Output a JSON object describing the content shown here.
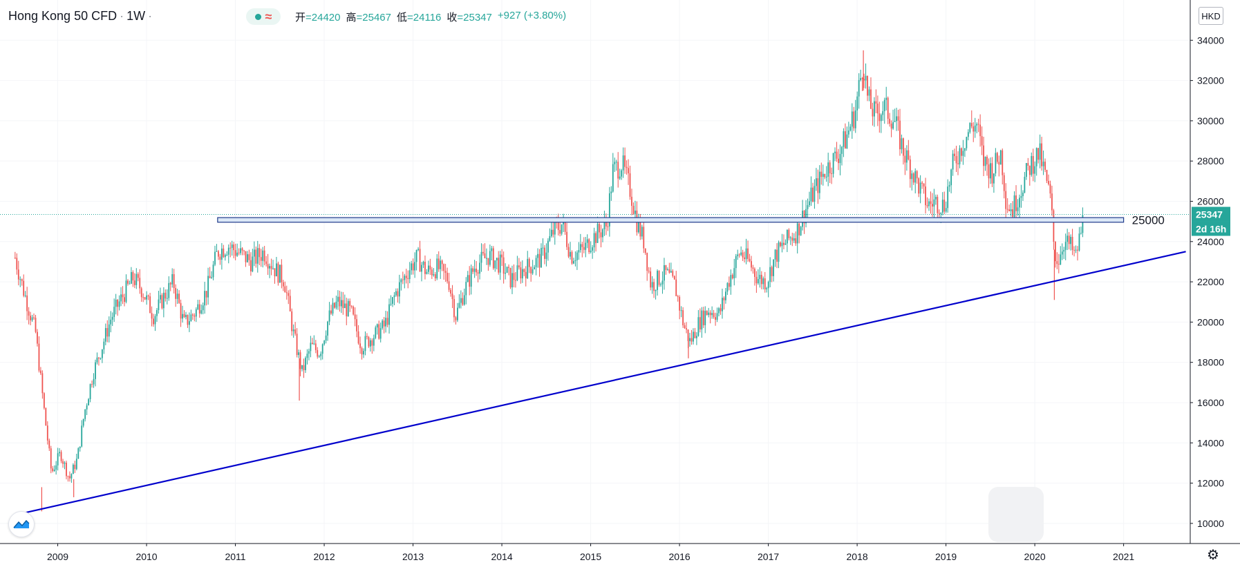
{
  "header": {
    "title": "Hong Kong 50 CFD",
    "separator": "·",
    "interval": "1W",
    "status_icon": "market-open-dot-icon",
    "wave_icon": "approx-wave-icon",
    "ohlc": [
      {
        "label": "开",
        "value": "=24420"
      },
      {
        "label": "高",
        "value": "=25467"
      },
      {
        "label": "低",
        "value": "=24116"
      },
      {
        "label": "收",
        "value": "=25347"
      }
    ],
    "change": "+927 (+3.80%)"
  },
  "currency_button": "HKD",
  "price_tag": {
    "value": "25347",
    "countdown": "2d 16h",
    "color": "#26a69a"
  },
  "level_label": "25000",
  "colors": {
    "up": "#26a69a",
    "down": "#ef5350",
    "trendline": "#0000cc",
    "band": "#1e3a8a",
    "band_fill": "#dbe7f7"
  },
  "icons": {
    "logo": "tradingview-logo-icon",
    "settings": "gear-icon"
  },
  "chart_data": {
    "type": "candlestick",
    "interval": "1W",
    "currency": "HKD",
    "xlim": [
      2008.35,
      2021.75
    ],
    "ylim": [
      9000,
      36000
    ],
    "y_ticks": [
      10000,
      12000,
      14000,
      16000,
      18000,
      20000,
      22000,
      24000,
      26000,
      28000,
      30000,
      32000,
      34000
    ],
    "x_ticks": [
      {
        "label": "2009",
        "x": 2009.0
      },
      {
        "label": "2010",
        "x": 2010.0
      },
      {
        "label": "2011",
        "x": 2011.0
      },
      {
        "label": "2012",
        "x": 2012.0
      },
      {
        "label": "2013",
        "x": 2013.0
      },
      {
        "label": "2014",
        "x": 2014.0
      },
      {
        "label": "2015",
        "x": 2015.0
      },
      {
        "label": "2016",
        "x": 2016.0
      },
      {
        "label": "2017",
        "x": 2017.0
      },
      {
        "label": "2018",
        "x": 2018.0
      },
      {
        "label": "2019",
        "x": 2019.0
      },
      {
        "label": "2020",
        "x": 2020.0
      },
      {
        "label": "2021",
        "x": 2021.0
      }
    ],
    "price_path_anchors": [
      [
        2008.52,
        23200
      ],
      [
        2008.62,
        21500
      ],
      [
        2008.75,
        19500
      ],
      [
        2008.85,
        15500
      ],
      [
        2008.93,
        12500
      ],
      [
        2009.03,
        13500
      ],
      [
        2009.13,
        12200
      ],
      [
        2009.22,
        13200
      ],
      [
        2009.3,
        15500
      ],
      [
        2009.4,
        17500
      ],
      [
        2009.5,
        18800
      ],
      [
        2009.6,
        20200
      ],
      [
        2009.72,
        21200
      ],
      [
        2009.85,
        22200
      ],
      [
        2009.95,
        21600
      ],
      [
        2010.08,
        20300
      ],
      [
        2010.2,
        21300
      ],
      [
        2010.3,
        22000
      ],
      [
        2010.42,
        19900
      ],
      [
        2010.55,
        20500
      ],
      [
        2010.68,
        21600
      ],
      [
        2010.8,
        23500
      ],
      [
        2010.92,
        23800
      ],
      [
        2011.05,
        23400
      ],
      [
        2011.18,
        23000
      ],
      [
        2011.32,
        23500
      ],
      [
        2011.45,
        22600
      ],
      [
        2011.55,
        22100
      ],
      [
        2011.65,
        19500
      ],
      [
        2011.75,
        17500
      ],
      [
        2011.85,
        18800
      ],
      [
        2011.95,
        18500
      ],
      [
        2012.05,
        20200
      ],
      [
        2012.15,
        21000
      ],
      [
        2012.3,
        20500
      ],
      [
        2012.42,
        18800
      ],
      [
        2012.55,
        19300
      ],
      [
        2012.68,
        19800
      ],
      [
        2012.8,
        21400
      ],
      [
        2012.95,
        22600
      ],
      [
        2013.05,
        23200
      ],
      [
        2013.15,
        22500
      ],
      [
        2013.28,
        22700
      ],
      [
        2013.4,
        22100
      ],
      [
        2013.48,
        20300
      ],
      [
        2013.58,
        21600
      ],
      [
        2013.7,
        22800
      ],
      [
        2013.85,
        23300
      ],
      [
        2014.0,
        22800
      ],
      [
        2014.1,
        22100
      ],
      [
        2014.2,
        22500
      ],
      [
        2014.32,
        22800
      ],
      [
        2014.45,
        23200
      ],
      [
        2014.58,
        24500
      ],
      [
        2014.68,
        24900
      ],
      [
        2014.78,
        23300
      ],
      [
        2014.92,
        23600
      ],
      [
        2015.05,
        24300
      ],
      [
        2015.18,
        24800
      ],
      [
        2015.25,
        27500
      ],
      [
        2015.35,
        27900
      ],
      [
        2015.45,
        26500
      ],
      [
        2015.52,
        25000
      ],
      [
        2015.6,
        24000
      ],
      [
        2015.68,
        21800
      ],
      [
        2015.78,
        22200
      ],
      [
        2015.85,
        22400
      ],
      [
        2015.95,
        21800
      ],
      [
        2016.05,
        19800
      ],
      [
        2016.12,
        19000
      ],
      [
        2016.22,
        20000
      ],
      [
        2016.32,
        20600
      ],
      [
        2016.45,
        20400
      ],
      [
        2016.55,
        22000
      ],
      [
        2016.68,
        23500
      ],
      [
        2016.78,
        23000
      ],
      [
        2016.88,
        22200
      ],
      [
        2016.98,
        22000
      ],
      [
        2017.08,
        23300
      ],
      [
        2017.2,
        24000
      ],
      [
        2017.32,
        24500
      ],
      [
        2017.42,
        25600
      ],
      [
        2017.55,
        26800
      ],
      [
        2017.65,
        27600
      ],
      [
        2017.78,
        28300
      ],
      [
        2017.88,
        29200
      ],
      [
        2017.98,
        30500
      ],
      [
        2018.07,
        33000
      ],
      [
        2018.12,
        31000
      ],
      [
        2018.2,
        30300
      ],
      [
        2018.3,
        30700
      ],
      [
        2018.42,
        30000
      ],
      [
        2018.52,
        28500
      ],
      [
        2018.62,
        27500
      ],
      [
        2018.72,
        26500
      ],
      [
        2018.8,
        25800
      ],
      [
        2018.88,
        26000
      ],
      [
        2018.98,
        25800
      ],
      [
        2019.08,
        27800
      ],
      [
        2019.18,
        28800
      ],
      [
        2019.28,
        29700
      ],
      [
        2019.35,
        29800
      ],
      [
        2019.42,
        28000
      ],
      [
        2019.52,
        27500
      ],
      [
        2019.62,
        28400
      ],
      [
        2019.68,
        25900
      ],
      [
        2019.75,
        25600
      ],
      [
        2019.85,
        26700
      ],
      [
        2019.95,
        27800
      ],
      [
        2020.05,
        28400
      ],
      [
        2020.12,
        27200
      ],
      [
        2020.18,
        26000
      ],
      [
        2020.22,
        23500
      ],
      [
        2020.26,
        23000
      ],
      [
        2020.32,
        24000
      ],
      [
        2020.4,
        23800
      ],
      [
        2020.46,
        23200
      ],
      [
        2020.52,
        24500
      ],
      [
        2020.55,
        25347
      ]
    ],
    "candle_extremes": [
      {
        "x": 2008.82,
        "high": 11800,
        "low": 10600
      },
      {
        "x": 2009.18,
        "high": 12200,
        "low": 11300
      },
      {
        "x": 2011.72,
        "high": 18200,
        "low": 16100
      },
      {
        "x": 2016.1,
        "high": 19300,
        "low": 18200
      },
      {
        "x": 2018.07,
        "high": 33500,
        "low": 31500
      },
      {
        "x": 2020.22,
        "high": 23600,
        "low": 21100
      }
    ],
    "trendline": {
      "start": [
        2008.5,
        10400
      ],
      "end": [
        2021.7,
        23500
      ]
    },
    "resistance_band": {
      "x_start": 2010.8,
      "x_end": 2021.0,
      "y_low": 24960,
      "y_high": 25190,
      "label": "25000"
    },
    "last_price": 25347,
    "last_price_label": "25347",
    "countdown": "2d 16h"
  }
}
